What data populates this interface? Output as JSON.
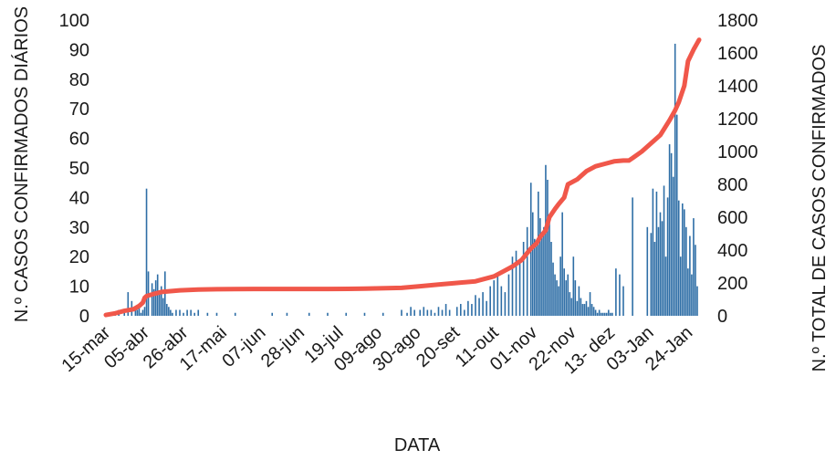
{
  "chart_data": {
    "type": "bar+line",
    "xlabel": "DATA",
    "ylabel_left": "N.º CASOS CONFIRMADOS DIÁRIOS",
    "ylabel_right": "N.º TOTAL DE CASOS CONFIRMADOS",
    "ylim_left": [
      0,
      100
    ],
    "ylim_right": [
      0,
      1800
    ],
    "yticks_left": [
      "0",
      "10",
      "20",
      "30",
      "40",
      "50",
      "60",
      "70",
      "80",
      "90",
      "100"
    ],
    "yticks_right": [
      "0",
      "200",
      "400",
      "600",
      "800",
      "1000",
      "1200",
      "1400",
      "1600",
      "1800"
    ],
    "xticks": [
      "15-mar",
      "05-abr",
      "26-abr",
      "17-mai",
      "07-jun",
      "28-jun",
      "19-jul",
      "09-ago",
      "30-ago",
      "20-set",
      "11-out",
      "01-nov",
      "22-nov",
      "13- dez",
      "03-Jan",
      "24-Jan"
    ],
    "day_range": [
      0,
      321
    ],
    "grid": false,
    "colors": {
      "bars": "#2e6ea6",
      "line": "#f0574a"
    },
    "series": [
      {
        "type": "bar",
        "axis": "left",
        "x_days": [
          3,
          5,
          7,
          10,
          12,
          14,
          16,
          17,
          18,
          19,
          20,
          21,
          22,
          23,
          25,
          26,
          27,
          28,
          29,
          30,
          31,
          32,
          33,
          34,
          35,
          36,
          38,
          40,
          42,
          44,
          46,
          48,
          50,
          55,
          60,
          70,
          90,
          98,
          110,
          120,
          130,
          140,
          150,
          160,
          163,
          165,
          167,
          170,
          172,
          174,
          176,
          178,
          180,
          182,
          184,
          186,
          190,
          192,
          194,
          196,
          198,
          200,
          202,
          204,
          206,
          208,
          210,
          212,
          214,
          216,
          218,
          220,
          222,
          224,
          226,
          228,
          230,
          231,
          232,
          233,
          234,
          235,
          236,
          237,
          238,
          239,
          240,
          241,
          242,
          243,
          244,
          245,
          246,
          247,
          248,
          249,
          250,
          251,
          252,
          253,
          254,
          255,
          256,
          257,
          258,
          259,
          260,
          261,
          262,
          263,
          264,
          265,
          266,
          267,
          268,
          269,
          270,
          271,
          272,
          273,
          274,
          276,
          278,
          280,
          285,
          293,
          295,
          296,
          297,
          298,
          299,
          300,
          301,
          302,
          303,
          304,
          305,
          306,
          307,
          308,
          309,
          310,
          311,
          312,
          313,
          314,
          315,
          316,
          317,
          318,
          319,
          320
        ],
        "values": [
          1,
          1,
          2,
          1,
          8,
          5,
          3,
          2,
          3,
          1,
          2,
          3,
          43,
          15,
          11,
          9,
          12,
          14,
          8,
          10,
          6,
          15,
          4,
          3,
          2,
          1,
          2,
          2,
          1,
          2,
          2,
          1,
          2,
          1,
          1,
          1,
          1,
          1,
          1,
          1,
          1,
          1,
          1,
          2,
          1,
          3,
          2,
          2,
          3,
          2,
          2,
          1,
          3,
          2,
          4,
          2,
          3,
          4,
          2,
          5,
          4,
          7,
          6,
          8,
          5,
          10,
          12,
          14,
          10,
          8,
          14,
          20,
          22,
          18,
          25,
          30,
          45,
          35,
          26,
          24,
          42,
          33,
          28,
          30,
          51,
          46,
          32,
          25,
          18,
          14,
          12,
          10,
          20,
          35,
          16,
          12,
          14,
          8,
          6,
          20,
          12,
          5,
          10,
          6,
          4,
          4,
          5,
          3,
          8,
          4,
          3,
          2,
          1,
          2,
          1,
          1,
          1,
          1,
          2,
          1,
          1,
          16,
          14,
          10,
          40,
          30,
          28,
          43,
          25,
          42,
          30,
          35,
          32,
          44,
          20,
          40,
          58,
          55,
          47,
          92,
          68,
          39,
          20,
          38,
          36,
          30,
          16,
          27,
          14,
          33,
          24,
          10
        ],
        "tall_values": [
          31,
          40,
          43
        ]
      },
      {
        "type": "line",
        "axis": "right",
        "x_days": [
          0,
          5,
          10,
          15,
          18,
          20,
          21,
          22,
          25,
          30,
          40,
          50,
          60,
          80,
          100,
          120,
          140,
          160,
          170,
          180,
          190,
          200,
          210,
          215,
          220,
          225,
          230,
          233,
          235,
          238,
          240,
          243,
          245,
          248,
          250,
          255,
          260,
          265,
          270,
          275,
          280,
          283,
          285,
          290,
          295,
          300,
          305,
          308,
          310,
          313,
          315,
          318,
          320,
          321
        ],
        "values": [
          5,
          15,
          30,
          40,
          60,
          80,
          110,
          120,
          130,
          145,
          155,
          160,
          162,
          163,
          163,
          163,
          165,
          170,
          180,
          190,
          200,
          210,
          240,
          270,
          300,
          340,
          410,
          440,
          480,
          520,
          600,
          650,
          680,
          720,
          800,
          830,
          880,
          910,
          925,
          940,
          945,
          945,
          960,
          1000,
          1050,
          1100,
          1190,
          1250,
          1300,
          1400,
          1550,
          1620,
          1660,
          1680
        ]
      }
    ]
  }
}
